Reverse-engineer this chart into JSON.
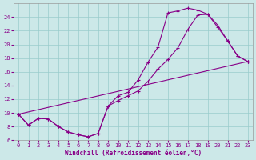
{
  "xlabel": "Windchill (Refroidissement éolien,°C)",
  "bg_color": "#cce8e8",
  "line_color": "#880088",
  "grid_color": "#99cccc",
  "xlim": [
    -0.5,
    23.5
  ],
  "ylim": [
    6,
    26
  ],
  "xticks": [
    0,
    1,
    2,
    3,
    4,
    5,
    6,
    7,
    8,
    9,
    10,
    11,
    12,
    13,
    14,
    15,
    16,
    17,
    18,
    19,
    20,
    21,
    22,
    23
  ],
  "yticks": [
    6,
    8,
    10,
    12,
    14,
    16,
    18,
    20,
    22,
    24
  ],
  "line1_x": [
    0,
    1,
    2,
    3,
    4,
    5,
    6,
    7,
    8,
    9,
    10,
    11,
    12,
    13,
    14,
    15,
    16,
    17,
    18,
    19,
    20,
    21,
    22,
    23
  ],
  "line1_y": [
    9.8,
    8.2,
    9.2,
    9.1,
    8.0,
    7.2,
    6.8,
    6.5,
    7.0,
    11.0,
    12.5,
    13.0,
    14.8,
    17.4,
    19.6,
    24.6,
    24.9,
    25.3,
    25.0,
    24.4,
    22.8,
    20.5,
    18.3,
    17.5
  ],
  "line2_x": [
    0,
    1,
    2,
    3,
    4,
    5,
    6,
    7,
    8,
    9,
    10,
    11,
    12,
    13,
    14,
    15,
    16,
    17,
    18,
    19,
    20,
    21,
    22,
    23
  ],
  "line2_y": [
    9.8,
    8.2,
    9.2,
    9.1,
    8.0,
    7.2,
    6.8,
    6.5,
    7.0,
    11.0,
    11.8,
    12.5,
    13.2,
    14.6,
    16.4,
    17.8,
    19.5,
    22.2,
    24.3,
    24.4,
    22.5,
    20.5,
    18.3,
    17.5
  ],
  "line3_x": [
    0,
    23
  ],
  "line3_y": [
    9.8,
    17.5
  ]
}
